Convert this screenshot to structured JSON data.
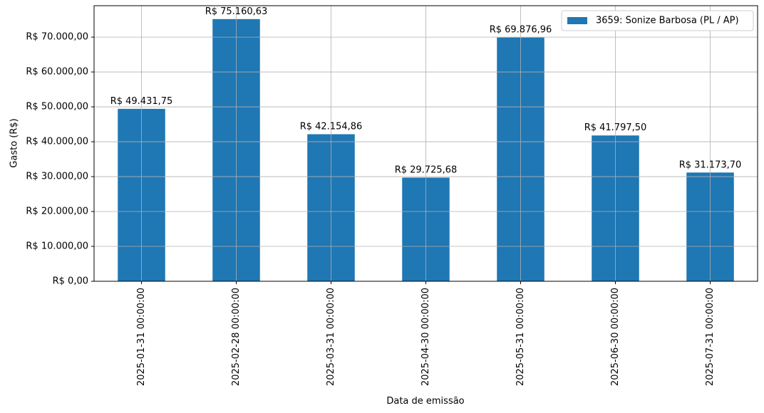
{
  "chart_data": {
    "type": "bar",
    "x_label": "Data de emissão",
    "y_label": "Gasto (R$)",
    "categories": [
      "2025-01-31 00:00:00",
      "2025-02-28 00:00:00",
      "2025-03-31 00:00:00",
      "2025-04-30 00:00:00",
      "2025-05-31 00:00:00",
      "2025-06-30 00:00:00",
      "2025-07-31 00:00:00"
    ],
    "series": [
      {
        "name": "3659: Sonize Barbosa (PL / AP)",
        "color": "#1f77b4",
        "values": [
          49431.75,
          75160.63,
          42154.86,
          29725.68,
          69876.96,
          41797.5,
          31173.7
        ],
        "value_labels": [
          "R$ 49.431,75",
          "R$ 75.160,63",
          "R$ 42.154,86",
          "R$ 29.725,68",
          "R$ 69.876,96",
          "R$ 41.797,50",
          "R$ 31.173,70"
        ]
      }
    ],
    "ylim": [
      0,
      79000
    ],
    "yticks": [
      {
        "value": 0,
        "label": "R$ 0,00"
      },
      {
        "value": 10000,
        "label": "R$ 10.000,00"
      },
      {
        "value": 20000,
        "label": "R$ 20.000,00"
      },
      {
        "value": 30000,
        "label": "R$ 30.000,00"
      },
      {
        "value": 40000,
        "label": "R$ 40.000,00"
      },
      {
        "value": 50000,
        "label": "R$ 50.000,00"
      },
      {
        "value": 60000,
        "label": "R$ 60.000,00"
      },
      {
        "value": 70000,
        "label": "R$ 70.000,00"
      }
    ],
    "grid": true,
    "legend": "upper right"
  }
}
